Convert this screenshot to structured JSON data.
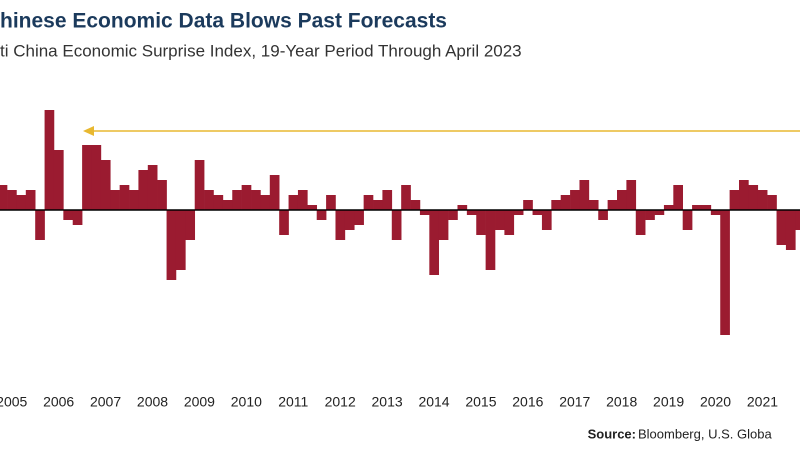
{
  "chart_data": {
    "type": "bar",
    "title": "hinese Economic Data Blows Past Forecasts",
    "subtitle": "ti China Economic Surprise Index, 19-Year Period Through April 2023",
    "source_label": "Source:",
    "source": "Bloomberg, U.S. Globa",
    "color": "#9b1b30",
    "x": [
      2004.8,
      2005,
      2005.2,
      2005.4,
      2005.6,
      2005.8,
      2006,
      2006.2,
      2006.4,
      2006.6,
      2006.8,
      2007,
      2007.2,
      2007.4,
      2007.6,
      2007.8,
      2008,
      2008.2,
      2008.4,
      2008.6,
      2008.8,
      2009,
      2009.2,
      2009.4,
      2009.6,
      2009.8,
      2010,
      2010.2,
      2010.4,
      2010.6,
      2010.8,
      2011,
      2011.2,
      2011.4,
      2011.6,
      2011.8,
      2012,
      2012.2,
      2012.4,
      2012.6,
      2012.8,
      2013,
      2013.2,
      2013.4,
      2013.6,
      2013.8,
      2014,
      2014.2,
      2014.4,
      2014.6,
      2014.8,
      2015,
      2015.2,
      2015.4,
      2015.6,
      2015.8,
      2016,
      2016.2,
      2016.4,
      2016.6,
      2016.8,
      2017,
      2017.2,
      2017.4,
      2017.6,
      2017.8,
      2018,
      2018.2,
      2018.4,
      2018.6,
      2018.8,
      2019,
      2019.2,
      2019.4,
      2019.6,
      2019.8,
      2020,
      2020.2,
      2020.4,
      2020.6,
      2020.8,
      2021,
      2021.2,
      2021.4,
      2021.6,
      2021.8
    ],
    "values": [
      25,
      20,
      15,
      20,
      -30,
      100,
      60,
      -10,
      -15,
      65,
      65,
      50,
      20,
      25,
      20,
      40,
      45,
      30,
      -70,
      -60,
      -30,
      50,
      20,
      15,
      10,
      20,
      25,
      20,
      15,
      35,
      -25,
      15,
      20,
      5,
      -10,
      15,
      -30,
      -20,
      -15,
      15,
      10,
      20,
      -30,
      25,
      10,
      -5,
      -65,
      -30,
      -10,
      5,
      -5,
      -25,
      -60,
      -20,
      -25,
      -5,
      10,
      -5,
      -20,
      10,
      15,
      20,
      30,
      10,
      -10,
      10,
      20,
      30,
      -25,
      -10,
      -5,
      5,
      25,
      -20,
      5,
      5,
      -5,
      -125,
      20,
      30,
      25,
      20,
      15,
      -35,
      -40,
      -20
    ],
    "xlim": [
      2004.75,
      2021.8
    ],
    "xticks": [
      2005,
      2006,
      2007,
      2008,
      2009,
      2010,
      2011,
      2012,
      2013,
      2014,
      2015,
      2016,
      2017,
      2018,
      2019,
      2020,
      2021
    ],
    "ylim": [
      -140,
      110
    ]
  }
}
